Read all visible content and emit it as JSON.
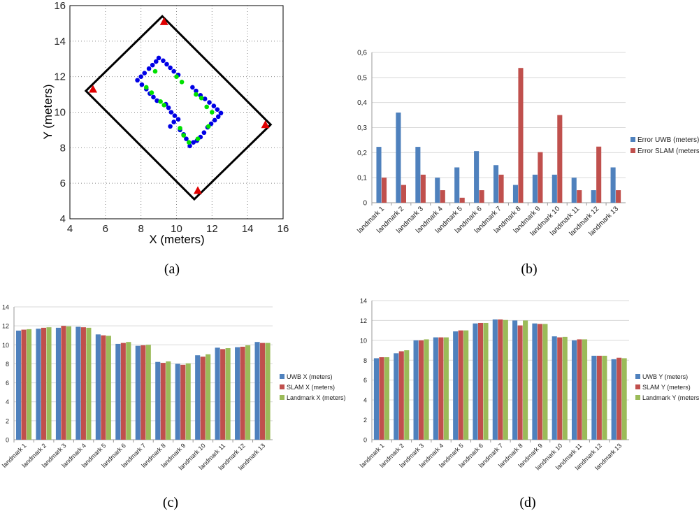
{
  "colors": {
    "uwb": "#4f81bd",
    "slam": "#c0504d",
    "landmark": "#9bbb59",
    "anchor": "#e00000",
    "path_blue": "#0000e6",
    "path_green": "#00e000"
  },
  "chart_data": [
    {
      "id": "a",
      "type": "scatter",
      "caption": "(a)",
      "xlabel": "X (meters)",
      "ylabel": "Y (meters)",
      "xlim": [
        4,
        16
      ],
      "ylim": [
        4,
        16
      ],
      "xticks": [
        "4",
        "6",
        "8",
        "10",
        "12",
        "14",
        "16"
      ],
      "yticks": [
        "4",
        "6",
        "8",
        "10",
        "12",
        "14",
        "16"
      ],
      "grid": true,
      "boundary": [
        [
          9.2,
          15.4
        ],
        [
          15.3,
          9.3
        ],
        [
          11.0,
          5.1
        ],
        [
          4.9,
          11.2
        ]
      ],
      "anchors": [
        [
          9.3,
          15.1
        ],
        [
          15.0,
          9.3
        ],
        [
          11.2,
          5.6
        ],
        [
          5.3,
          11.3
        ]
      ],
      "path_blue": [
        [
          7.8,
          11.8
        ],
        [
          8.0,
          12.0
        ],
        [
          8.2,
          12.2
        ],
        [
          8.45,
          12.45
        ],
        [
          8.65,
          12.65
        ],
        [
          8.85,
          12.85
        ],
        [
          9.0,
          13.05
        ],
        [
          9.25,
          12.9
        ],
        [
          9.45,
          12.7
        ],
        [
          9.65,
          12.5
        ],
        [
          9.85,
          12.3
        ],
        [
          10.1,
          12.1
        ],
        [
          8.05,
          11.55
        ],
        [
          8.3,
          11.3
        ],
        [
          8.5,
          11.05
        ],
        [
          8.7,
          10.85
        ],
        [
          8.9,
          10.65
        ],
        [
          10.9,
          11.4
        ],
        [
          11.1,
          11.2
        ],
        [
          11.35,
          10.95
        ],
        [
          11.6,
          10.75
        ],
        [
          11.85,
          10.55
        ],
        [
          12.1,
          10.35
        ],
        [
          12.3,
          10.15
        ],
        [
          12.5,
          9.95
        ],
        [
          12.35,
          9.75
        ],
        [
          12.15,
          9.55
        ],
        [
          11.95,
          9.35
        ],
        [
          11.75,
          9.15
        ],
        [
          9.9,
          9.8
        ],
        [
          9.7,
          10.0
        ],
        [
          9.55,
          10.25
        ],
        [
          9.4,
          10.45
        ],
        [
          10.1,
          9.6
        ],
        [
          9.85,
          9.45
        ],
        [
          9.65,
          9.2
        ],
        [
          10.2,
          9.0
        ],
        [
          10.4,
          8.75
        ],
        [
          10.55,
          8.5
        ],
        [
          10.75,
          8.1
        ],
        [
          10.95,
          8.3
        ],
        [
          11.15,
          8.4
        ],
        [
          11.35,
          8.6
        ],
        [
          11.55,
          8.85
        ]
      ],
      "path_green": [
        [
          8.3,
          11.4
        ],
        [
          8.6,
          11.1
        ],
        [
          8.8,
          12.3
        ],
        [
          9.1,
          10.6
        ],
        [
          9.3,
          10.4
        ],
        [
          10.0,
          12.0
        ],
        [
          10.3,
          11.7
        ],
        [
          11.1,
          11.0
        ],
        [
          11.4,
          10.8
        ],
        [
          11.7,
          10.3
        ],
        [
          12.0,
          10.0
        ],
        [
          11.8,
          9.2
        ],
        [
          10.2,
          9.1
        ],
        [
          10.4,
          8.7
        ],
        [
          10.7,
          8.3
        ],
        [
          11.2,
          8.5
        ]
      ]
    },
    {
      "id": "b",
      "type": "bar",
      "caption": "(b)",
      "categories": [
        "landmark 1",
        "landmark 2",
        "landmark 3",
        "landmark 4",
        "landmark 5",
        "landmark 6",
        "landmark 7",
        "landmark 8",
        "landmark 9",
        "landmark 10",
        "landmark 11",
        "landmark 12",
        "landmark 13"
      ],
      "series": [
        {
          "name": "Error UWB (meters)",
          "color_key": "uwb",
          "values": [
            0.223,
            0.36,
            0.223,
            0.1,
            0.141,
            0.206,
            0.15,
            0.071,
            0.112,
            0.112,
            0.1,
            0.05,
            0.141
          ]
        },
        {
          "name": "Error SLAM (meters)",
          "color_key": "slam",
          "values": [
            0.1,
            0.071,
            0.112,
            0.05,
            0.02,
            0.05,
            0.112,
            0.538,
            0.202,
            0.35,
            0.05,
            0.224,
            0.05
          ]
        }
      ],
      "ylim": [
        0,
        0.6
      ],
      "yticks": [
        "0",
        "0,1",
        "0,2",
        "0,3",
        "0,4",
        "0,5",
        "0,6"
      ],
      "legend_position": "right",
      "grid": true
    },
    {
      "id": "c",
      "type": "bar",
      "caption": "(c)",
      "categories": [
        "landmark 1",
        "landmark 2",
        "landmark 3",
        "landmark 4",
        "landmark 5",
        "landmark 6",
        "landmark 7",
        "landmark 8",
        "landmark 9",
        "landmark 10",
        "landmark 11",
        "landmark 12",
        "landmark 13"
      ],
      "series": [
        {
          "name": "UWB X (meters)",
          "color_key": "uwb",
          "values": [
            11.5,
            11.7,
            11.8,
            11.9,
            11.1,
            10.1,
            9.9,
            8.2,
            8.0,
            8.9,
            9.7,
            9.75,
            10.3
          ]
        },
        {
          "name": "SLAM X (meters)",
          "color_key": "slam",
          "values": [
            11.6,
            11.8,
            12.0,
            11.85,
            11.0,
            10.2,
            9.95,
            8.1,
            7.9,
            8.75,
            9.55,
            9.8,
            10.2
          ]
        },
        {
          "name": "Landmark X (meters)",
          "color_key": "landmark",
          "values": [
            11.65,
            11.85,
            11.95,
            11.8,
            10.95,
            10.3,
            10.0,
            8.25,
            8.05,
            9.0,
            9.65,
            9.95,
            10.2
          ]
        }
      ],
      "ylim": [
        0,
        14
      ],
      "yticks": [
        "0",
        "2",
        "4",
        "6",
        "8",
        "10",
        "12",
        "14"
      ],
      "legend_position": "right",
      "grid": true
    },
    {
      "id": "d",
      "type": "bar",
      "caption": "(d)",
      "categories": [
        "landmark 1",
        "landmark 2",
        "landmark 3",
        "landmark 4",
        "landmark 5",
        "landmark 6",
        "landmark 7",
        "landmark 8",
        "landmark 9",
        "landmark 10",
        "landmark 11",
        "landmark 12",
        "landmark 13"
      ],
      "series": [
        {
          "name": "UWB Y (meters)",
          "color_key": "uwb",
          "values": [
            8.2,
            8.7,
            10.0,
            10.3,
            10.9,
            11.7,
            12.1,
            12.0,
            11.7,
            10.4,
            10.0,
            8.45,
            8.1
          ]
        },
        {
          "name": "SLAM Y (meters)",
          "color_key": "slam",
          "values": [
            8.3,
            8.9,
            10.0,
            10.3,
            11.0,
            11.75,
            12.1,
            11.5,
            11.65,
            10.3,
            10.1,
            8.45,
            8.25
          ]
        },
        {
          "name": "Landmark Y (meters)",
          "color_key": "landmark",
          "values": [
            8.3,
            9.0,
            10.1,
            10.3,
            11.0,
            11.75,
            12.05,
            12.0,
            11.65,
            10.35,
            10.1,
            8.45,
            8.2
          ]
        }
      ],
      "ylim": [
        0,
        14
      ],
      "yticks": [
        "0",
        "2",
        "4",
        "6",
        "8",
        "10",
        "12",
        "14"
      ],
      "legend_position": "right",
      "grid": true
    }
  ]
}
